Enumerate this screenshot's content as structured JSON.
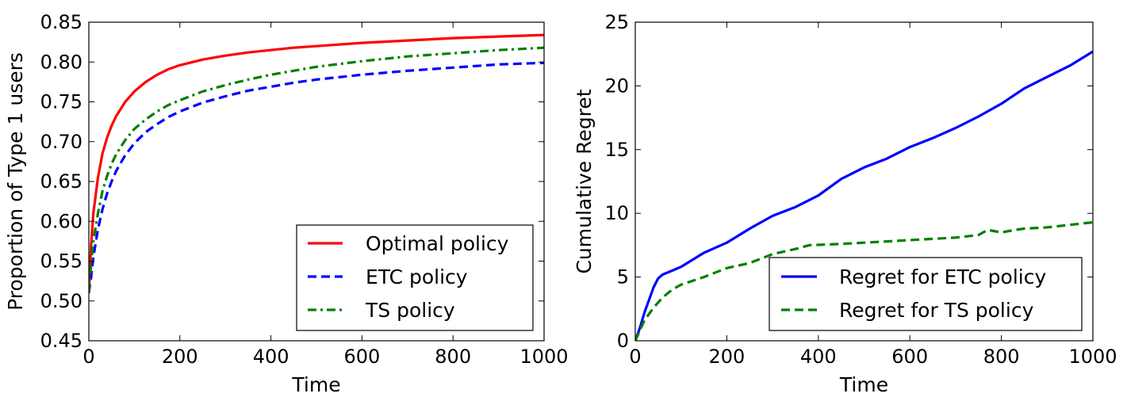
{
  "chart_data": [
    {
      "type": "line",
      "title": "",
      "xlabel": "Time",
      "ylabel": "Proportion of Type 1 users",
      "xlim": [
        0,
        1000
      ],
      "ylim": [
        0.45,
        0.85
      ],
      "xticks": [
        0,
        200,
        400,
        600,
        800,
        1000
      ],
      "yticks": [
        0.45,
        0.5,
        0.55,
        0.6,
        0.65,
        0.7,
        0.75,
        0.8,
        0.85
      ],
      "xtick_labels": [
        "0",
        "200",
        "400",
        "600",
        "800",
        "1000"
      ],
      "ytick_labels": [
        "0.45",
        "0.50",
        "0.55",
        "0.60",
        "0.65",
        "0.70",
        "0.75",
        "0.80",
        "0.85"
      ],
      "legend_position": "bottom-right",
      "x": [
        0,
        5,
        10,
        20,
        30,
        40,
        50,
        60,
        80,
        100,
        125,
        150,
        175,
        200,
        250,
        300,
        350,
        400,
        450,
        500,
        600,
        700,
        800,
        900,
        1000
      ],
      "series": [
        {
          "name": "Optimal policy",
          "color": "#ff0000",
          "style": "solid",
          "values": [
            0.51,
            0.57,
            0.61,
            0.655,
            0.685,
            0.705,
            0.72,
            0.732,
            0.75,
            0.763,
            0.775,
            0.784,
            0.791,
            0.796,
            0.803,
            0.808,
            0.812,
            0.815,
            0.818,
            0.82,
            0.824,
            0.827,
            0.83,
            0.832,
            0.834
          ]
        },
        {
          "name": "ETC policy",
          "color": "#0000ff",
          "style": "dashed",
          "values": [
            0.51,
            0.53,
            0.555,
            0.59,
            0.615,
            0.635,
            0.65,
            0.663,
            0.683,
            0.698,
            0.712,
            0.722,
            0.731,
            0.738,
            0.749,
            0.757,
            0.764,
            0.769,
            0.774,
            0.778,
            0.784,
            0.789,
            0.793,
            0.797,
            0.799
          ]
        },
        {
          "name": "TS policy",
          "color": "#008000",
          "style": "dashdot",
          "values": [
            0.51,
            0.545,
            0.575,
            0.61,
            0.638,
            0.657,
            0.672,
            0.684,
            0.702,
            0.716,
            0.728,
            0.738,
            0.746,
            0.752,
            0.763,
            0.771,
            0.778,
            0.784,
            0.789,
            0.794,
            0.801,
            0.807,
            0.811,
            0.815,
            0.818
          ]
        }
      ]
    },
    {
      "type": "line",
      "title": "",
      "xlabel": "Time",
      "ylabel": "Cumulative Regret",
      "xlim": [
        0,
        1000
      ],
      "ylim": [
        0,
        25
      ],
      "xticks": [
        0,
        200,
        400,
        600,
        800,
        1000
      ],
      "yticks": [
        0,
        5,
        10,
        15,
        20,
        25
      ],
      "xtick_labels": [
        "0",
        "200",
        "400",
        "600",
        "800",
        "1000"
      ],
      "ytick_labels": [
        "0",
        "5",
        "10",
        "15",
        "20",
        "25"
      ],
      "legend_position": "bottom-right",
      "series": [
        {
          "name": "Regret for ETC policy",
          "color": "#0000ff",
          "style": "solid",
          "x": [
            0,
            10,
            20,
            30,
            40,
            50,
            60,
            80,
            100,
            150,
            200,
            250,
            300,
            350,
            400,
            450,
            500,
            550,
            600,
            650,
            700,
            750,
            800,
            850,
            900,
            950,
            1000
          ],
          "values": [
            0,
            1.0,
            2.2,
            3.2,
            4.2,
            4.9,
            5.2,
            5.5,
            5.8,
            6.9,
            7.7,
            8.8,
            9.8,
            10.5,
            11.4,
            12.7,
            13.6,
            14.3,
            15.2,
            15.9,
            16.7,
            17.6,
            18.6,
            19.8,
            20.7,
            21.6,
            22.7
          ]
        },
        {
          "name": "Regret for TS policy",
          "color": "#008000",
          "style": "dashed",
          "x": [
            0,
            10,
            20,
            40,
            60,
            80,
            100,
            150,
            200,
            250,
            300,
            350,
            380,
            450,
            500,
            550,
            600,
            650,
            700,
            750,
            770,
            800,
            830,
            850,
            900,
            950,
            1000
          ],
          "values": [
            0,
            0.8,
            1.6,
            2.6,
            3.4,
            4.0,
            4.4,
            5.0,
            5.7,
            6.1,
            6.8,
            7.2,
            7.5,
            7.6,
            7.7,
            7.8,
            7.9,
            8.0,
            8.1,
            8.3,
            8.7,
            8.5,
            8.7,
            8.8,
            8.9,
            9.1,
            9.3
          ]
        }
      ]
    }
  ]
}
